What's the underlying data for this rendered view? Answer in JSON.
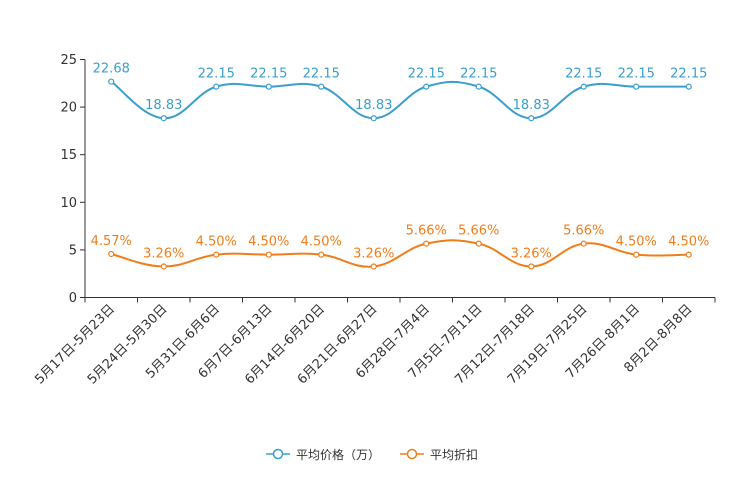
{
  "chart_data": {
    "type": "line",
    "title": "",
    "xlabel": "",
    "ylabel": "",
    "ylim": [
      0,
      25
    ],
    "yticks": [
      "0",
      "5",
      "10",
      "15",
      "20",
      "25"
    ],
    "categories": [
      "5月17日-5月23日",
      "5月24日-5月30日",
      "5月31日-6月6日",
      "6月7日-6月13日",
      "6月14日-6月20日",
      "6月21日-6月27日",
      "6月28日-7月4日",
      "7月5日-7月11日",
      "7月12日-7月18日",
      "7月19日-7月25日",
      "7月26日-8月1日",
      "8月2日-8月8日"
    ],
    "series": [
      {
        "name": "平均价格（万）",
        "color": "#3a9fcf",
        "values": [
          22.68,
          18.83,
          22.15,
          22.15,
          22.15,
          18.83,
          22.15,
          22.15,
          18.83,
          22.15,
          22.15,
          22.15
        ],
        "labels": [
          "22.68",
          "18.83",
          "22.15",
          "22.15",
          "22.15",
          "18.83",
          "22.15",
          "22.15",
          "18.83",
          "22.15",
          "22.15",
          "22.15"
        ]
      },
      {
        "name": "平均折扣",
        "color": "#f07d1a",
        "values": [
          4.57,
          3.26,
          4.5,
          4.5,
          4.5,
          3.26,
          5.66,
          5.66,
          3.26,
          5.66,
          4.5,
          4.5
        ],
        "labels": [
          "4.57%",
          "3.26%",
          "4.50%",
          "4.50%",
          "4.50%",
          "3.26%",
          "5.66%",
          "5.66%",
          "3.26%",
          "5.66%",
          "4.50%",
          "4.50%"
        ]
      }
    ],
    "legend_position": "bottom"
  },
  "legend": {
    "items": [
      {
        "label": "平均价格（万）",
        "color": "#3a9fcf"
      },
      {
        "label": "平均折扣",
        "color": "#f07d1a"
      }
    ]
  }
}
